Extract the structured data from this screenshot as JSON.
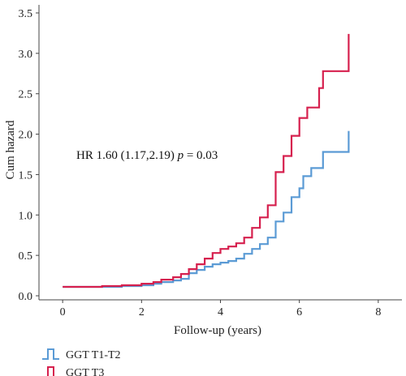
{
  "chart_data": {
    "type": "line",
    "step": true,
    "xlabel": "Follow-up (years)",
    "ylabel": "Cum hazard",
    "xlim": [
      -0.6,
      8.6
    ],
    "ylim": [
      -0.05,
      3.6
    ],
    "xticks": [
      0,
      2,
      4,
      6,
      8
    ],
    "yticks": [
      0.0,
      0.5,
      1.0,
      1.5,
      2.0,
      2.5,
      3.0,
      3.5
    ],
    "ytick_labels": [
      "0.0",
      "0.5",
      "1.0",
      "1.5",
      "2.0",
      "2.5",
      "3.0",
      "3.5"
    ],
    "grid": false,
    "legend_position": "bottom-left",
    "annotation": {
      "prefix": "HR 1.60 (1.17,2.19) ",
      "italic": "p",
      "suffix": " = 0.03"
    },
    "series": [
      {
        "name": "GGT T1-T2",
        "color": "#5b9bd5",
        "x": [
          0.0,
          1.0,
          1.5,
          2.0,
          2.3,
          2.5,
          2.8,
          3.0,
          3.2,
          3.4,
          3.6,
          3.8,
          4.0,
          4.2,
          4.4,
          4.6,
          4.8,
          5.0,
          5.2,
          5.4,
          5.6,
          5.8,
          6.0,
          6.1,
          6.3,
          6.6,
          7.25,
          7.25
        ],
        "y": [
          0.11,
          0.11,
          0.12,
          0.13,
          0.15,
          0.17,
          0.19,
          0.21,
          0.28,
          0.32,
          0.36,
          0.39,
          0.41,
          0.43,
          0.46,
          0.52,
          0.58,
          0.64,
          0.72,
          0.92,
          1.03,
          1.22,
          1.33,
          1.48,
          1.58,
          1.78,
          1.78,
          2.04
        ]
      },
      {
        "name": "GGT T3",
        "color": "#d6204e",
        "x": [
          0.0,
          1.0,
          1.5,
          2.0,
          2.3,
          2.5,
          2.8,
          3.0,
          3.2,
          3.4,
          3.6,
          3.8,
          4.0,
          4.2,
          4.4,
          4.6,
          4.8,
          5.0,
          5.2,
          5.4,
          5.6,
          5.8,
          6.0,
          6.2,
          6.5,
          6.6,
          7.25,
          7.25
        ],
        "y": [
          0.11,
          0.12,
          0.13,
          0.15,
          0.17,
          0.2,
          0.23,
          0.27,
          0.33,
          0.39,
          0.46,
          0.53,
          0.58,
          0.61,
          0.65,
          0.72,
          0.84,
          0.97,
          1.12,
          1.53,
          1.73,
          1.98,
          2.2,
          2.33,
          2.57,
          2.78,
          2.78,
          3.24
        ]
      }
    ]
  }
}
